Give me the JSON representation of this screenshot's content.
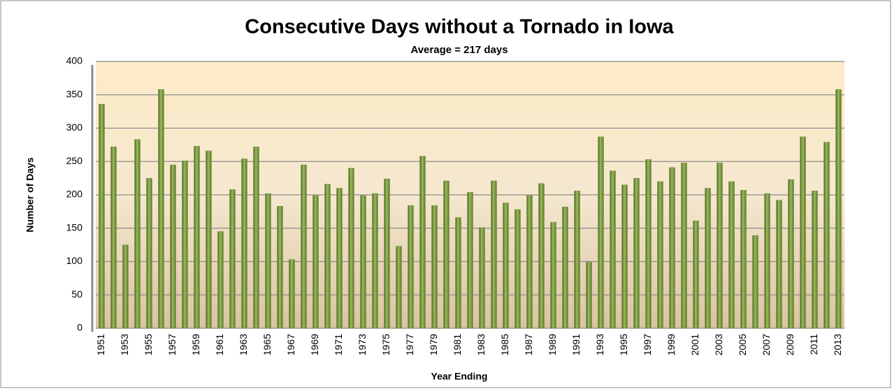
{
  "chart_data": {
    "type": "bar",
    "title": "Consecutive Days without a Tornado in Iowa",
    "subtitle": "Average = 217 days",
    "x_label": "Year Ending",
    "y_label": "Number of Days",
    "categories": [
      "1951",
      null,
      "1953",
      null,
      "1955",
      null,
      "1957",
      null,
      "1959",
      null,
      "1961",
      null,
      "1963",
      null,
      "1965",
      null,
      "1967",
      null,
      "1969",
      null,
      "1971",
      null,
      "1973",
      null,
      "1975",
      null,
      "1977",
      null,
      "1979",
      null,
      "1981",
      null,
      "1983",
      null,
      "1985",
      null,
      "1987",
      null,
      "1989",
      null,
      "1991",
      null,
      "1993",
      null,
      "1995",
      null,
      "1997",
      null,
      "1999",
      null,
      "2001",
      null,
      "2003",
      null,
      "2005",
      null,
      "2007",
      null,
      "2009",
      null,
      "2011",
      null,
      "2013"
    ],
    "values": [
      336,
      272,
      125,
      283,
      225,
      358,
      245,
      251,
      273,
      266,
      145,
      208,
      254,
      272,
      202,
      183,
      103,
      245,
      199,
      216,
      210,
      240,
      199,
      202,
      224,
      123,
      184,
      258,
      184,
      221,
      166,
      204,
      151,
      221,
      188,
      178,
      199,
      217,
      159,
      182,
      206,
      99,
      287,
      236,
      215,
      225,
      253,
      220,
      241,
      248,
      161,
      210,
      248,
      220,
      207,
      139,
      202,
      192,
      223,
      287,
      206,
      279,
      358
    ],
    "color": "#77933c",
    "ylim": [
      0,
      400
    ],
    "yticks": [
      0,
      50,
      100,
      150,
      200,
      250,
      300,
      350,
      400
    ],
    "grid": true
  }
}
